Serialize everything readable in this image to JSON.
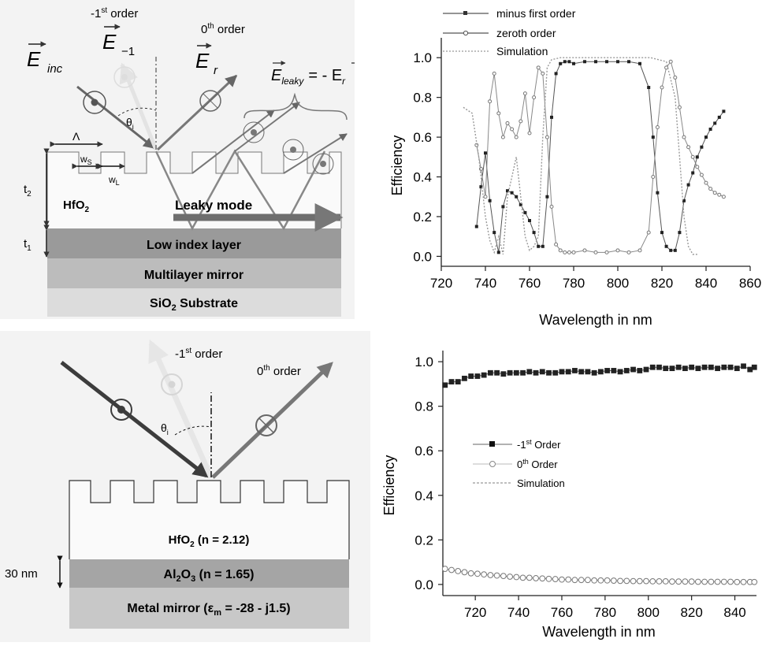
{
  "diagram_top": {
    "vec_inc": "E",
    "vec_inc_sub": "inc",
    "vec_m1": "E",
    "vec_m1_sub": "−1",
    "vec_r": "E",
    "vec_r_sub": "r",
    "minus_first_order_pre": "-1",
    "minus_first_order_sup": "st",
    "minus_first_order_post": " order",
    "zeroth_order_pre": "0",
    "zeroth_order_sup": "th",
    "zeroth_order_post": " order",
    "leaky_eq_E": "E",
    "leaky_eq_sub": "leaky",
    "leaky_eq_rhs": "= - E",
    "leaky_eq_rhs_sub": "r",
    "theta": "θ",
    "theta_sub": "i",
    "lambda": "Λ",
    "ws": "w",
    "ws_sub": "S",
    "wl": "w",
    "wl_sub": "L",
    "t2": "t",
    "t2_sub": "2",
    "t1": "t",
    "t1_sub": "1",
    "hfo2": "HfO",
    "hfo2_sub": "2",
    "leaky_mode": "Leaky mode",
    "layer_low_index": "Low index layer",
    "layer_mirror": "Multilayer mirror",
    "layer_substrate_pre": "SiO",
    "layer_substrate_sub": "2",
    "layer_substrate_post": " Substrate",
    "colors": {
      "low_index": "#9a9a9a",
      "mirror": "#bcbcbc",
      "substrate": "#dcdcdc"
    }
  },
  "diagram_bottom": {
    "minus_first_order_pre": "-1",
    "minus_first_order_sup": "st",
    "minus_first_order_post": " order",
    "zeroth_order_pre": "0",
    "zeroth_order_sup": "th",
    "zeroth_order_post": " order",
    "theta": "θ",
    "theta_sub": "i",
    "hfo2_pre": "HfO",
    "hfo2_sub": "2",
    "hfo2_post": " (n = 2.12)",
    "thickness": "30 nm",
    "al2o3_pre": "Al",
    "al2o3_sub1": "2",
    "al2o3_mid": "O",
    "al2o3_sub2": "3",
    "al2o3_post": " (n = 1.65)",
    "metal_pre": "Metal mirror (ε",
    "metal_sub": "m",
    "metal_post": " = -28 - j1.5)",
    "colors": {
      "al2o3": "#a5a5a5",
      "metal": "#c8c8c8"
    }
  },
  "chart_data": [
    {
      "type": "line",
      "ylabel": "Efficiency",
      "xlabel": "Wavelength in nm",
      "xlim": [
        720,
        860
      ],
      "ylim": [
        -0.05,
        1.1
      ],
      "xticks": [
        720,
        740,
        760,
        780,
        800,
        820,
        840,
        860
      ],
      "yticks": [
        0.0,
        0.2,
        0.4,
        0.6,
        0.8,
        1.0
      ],
      "ytick_labels": [
        "0.0",
        "0.2",
        "0.4",
        "0.6",
        "0.8",
        "1.0"
      ],
      "legend_position": "top-left",
      "series": [
        {
          "name": "minus first order",
          "marker": "filled-square",
          "x": [
            736,
            738,
            740,
            742,
            744,
            746,
            748,
            750,
            752,
            754,
            756,
            758,
            760,
            762,
            764,
            766,
            768,
            770,
            772,
            774,
            776,
            778,
            780,
            785,
            790,
            795,
            800,
            805,
            810,
            814,
            816,
            818,
            820,
            822,
            824,
            826,
            828,
            830,
            832,
            834,
            836,
            838,
            840,
            842,
            844,
            846,
            848
          ],
          "y": [
            0.15,
            0.35,
            0.52,
            0.28,
            0.12,
            0.02,
            0.25,
            0.33,
            0.32,
            0.3,
            0.26,
            0.22,
            0.18,
            0.12,
            0.05,
            0.05,
            0.3,
            0.7,
            0.92,
            0.97,
            0.98,
            0.98,
            0.97,
            0.98,
            0.98,
            0.98,
            0.98,
            0.98,
            0.97,
            0.85,
            0.6,
            0.32,
            0.12,
            0.05,
            0.03,
            0.03,
            0.12,
            0.28,
            0.36,
            0.42,
            0.5,
            0.55,
            0.6,
            0.64,
            0.67,
            0.7,
            0.73
          ]
        },
        {
          "name": "zeroth order",
          "marker": "open-circle",
          "x": [
            736,
            738,
            740,
            742,
            744,
            746,
            748,
            750,
            752,
            754,
            756,
            758,
            760,
            762,
            764,
            766,
            768,
            770,
            772,
            774,
            776,
            778,
            780,
            785,
            790,
            795,
            800,
            805,
            810,
            814,
            816,
            818,
            820,
            822,
            824,
            826,
            828,
            830,
            832,
            834,
            836,
            838,
            840,
            842,
            844,
            846,
            848
          ],
          "y": [
            0.56,
            0.44,
            0.3,
            0.78,
            0.92,
            0.72,
            0.6,
            0.67,
            0.64,
            0.6,
            0.68,
            0.82,
            0.62,
            0.8,
            0.95,
            0.92,
            0.6,
            0.25,
            0.06,
            0.03,
            0.02,
            0.02,
            0.02,
            0.03,
            0.02,
            0.02,
            0.03,
            0.02,
            0.03,
            0.12,
            0.4,
            0.65,
            0.85,
            0.95,
            0.98,
            0.9,
            0.75,
            0.6,
            0.55,
            0.5,
            0.45,
            0.41,
            0.37,
            0.34,
            0.32,
            0.31,
            0.3
          ]
        },
        {
          "name": "Simulation",
          "marker": "dotted",
          "x": [
            730,
            734,
            737,
            740,
            742,
            744,
            746,
            748,
            750,
            752,
            754,
            756,
            758,
            760,
            762,
            764,
            766,
            768,
            770,
            774,
            778,
            785,
            800,
            815,
            822,
            826,
            828,
            830,
            832,
            834,
            836
          ],
          "y": [
            0.75,
            0.72,
            0.5,
            0.2,
            0.08,
            0.02,
            0.1,
            0.01,
            0.3,
            0.4,
            0.5,
            0.3,
            0.1,
            0.03,
            0.05,
            0.1,
            0.6,
            0.95,
            0.99,
            1.0,
            1.0,
            1.0,
            1.0,
            1.0,
            0.98,
            0.8,
            0.5,
            0.2,
            0.05,
            0.01,
            0.01
          ]
        }
      ]
    },
    {
      "type": "line",
      "ylabel": "Efficiency",
      "xlabel": "Wavelength in nm",
      "xlim": [
        705,
        850
      ],
      "ylim": [
        -0.05,
        1.05
      ],
      "xticks": [
        720,
        740,
        760,
        780,
        800,
        820,
        840
      ],
      "yticks": [
        0.0,
        0.2,
        0.4,
        0.6,
        0.8,
        1.0
      ],
      "ytick_labels": [
        "0.0",
        "0.2",
        "0.4",
        "0.6",
        "0.8",
        "1.0"
      ],
      "legend_position": "center-left",
      "series": [
        {
          "name_pre": "-1",
          "name_sup": "st",
          "name_post": " Order",
          "marker": "filled-square",
          "x": [
            706,
            709,
            712,
            715,
            718,
            721,
            724,
            727,
            730,
            733,
            736,
            739,
            742,
            745,
            748,
            751,
            754,
            757,
            760,
            763,
            766,
            769,
            772,
            775,
            778,
            781,
            784,
            787,
            790,
            793,
            796,
            799,
            802,
            805,
            808,
            811,
            814,
            817,
            820,
            823,
            826,
            829,
            832,
            835,
            838,
            841,
            844,
            847,
            849
          ],
          "y": [
            0.895,
            0.91,
            0.91,
            0.925,
            0.935,
            0.935,
            0.94,
            0.95,
            0.95,
            0.945,
            0.95,
            0.95,
            0.95,
            0.955,
            0.95,
            0.955,
            0.95,
            0.95,
            0.955,
            0.955,
            0.96,
            0.955,
            0.955,
            0.95,
            0.955,
            0.96,
            0.96,
            0.955,
            0.96,
            0.965,
            0.96,
            0.965,
            0.975,
            0.975,
            0.97,
            0.97,
            0.975,
            0.97,
            0.975,
            0.97,
            0.975,
            0.975,
            0.97,
            0.975,
            0.975,
            0.97,
            0.98,
            0.965,
            0.975
          ]
        },
        {
          "name_pre": "0",
          "name_sup": "th",
          "name_post": " Order",
          "marker": "open-circle",
          "x": [
            706,
            709,
            712,
            715,
            718,
            721,
            724,
            727,
            730,
            733,
            736,
            739,
            742,
            745,
            748,
            751,
            754,
            757,
            760,
            763,
            766,
            769,
            772,
            775,
            778,
            781,
            784,
            787,
            790,
            793,
            796,
            799,
            802,
            805,
            808,
            811,
            814,
            817,
            820,
            823,
            826,
            829,
            832,
            835,
            838,
            841,
            844,
            847,
            849
          ],
          "y": [
            0.07,
            0.065,
            0.06,
            0.055,
            0.05,
            0.048,
            0.045,
            0.042,
            0.04,
            0.038,
            0.035,
            0.033,
            0.03,
            0.03,
            0.028,
            0.027,
            0.025,
            0.024,
            0.022,
            0.022,
            0.02,
            0.02,
            0.02,
            0.018,
            0.018,
            0.018,
            0.017,
            0.016,
            0.016,
            0.015,
            0.015,
            0.015,
            0.014,
            0.014,
            0.014,
            0.013,
            0.013,
            0.013,
            0.013,
            0.012,
            0.012,
            0.012,
            0.012,
            0.012,
            0.012,
            0.011,
            0.011,
            0.011,
            0.011
          ]
        },
        {
          "name_pre": "Simulation",
          "name_sup": "",
          "name_post": "",
          "marker": "dotted",
          "x": [],
          "y": []
        }
      ]
    }
  ]
}
